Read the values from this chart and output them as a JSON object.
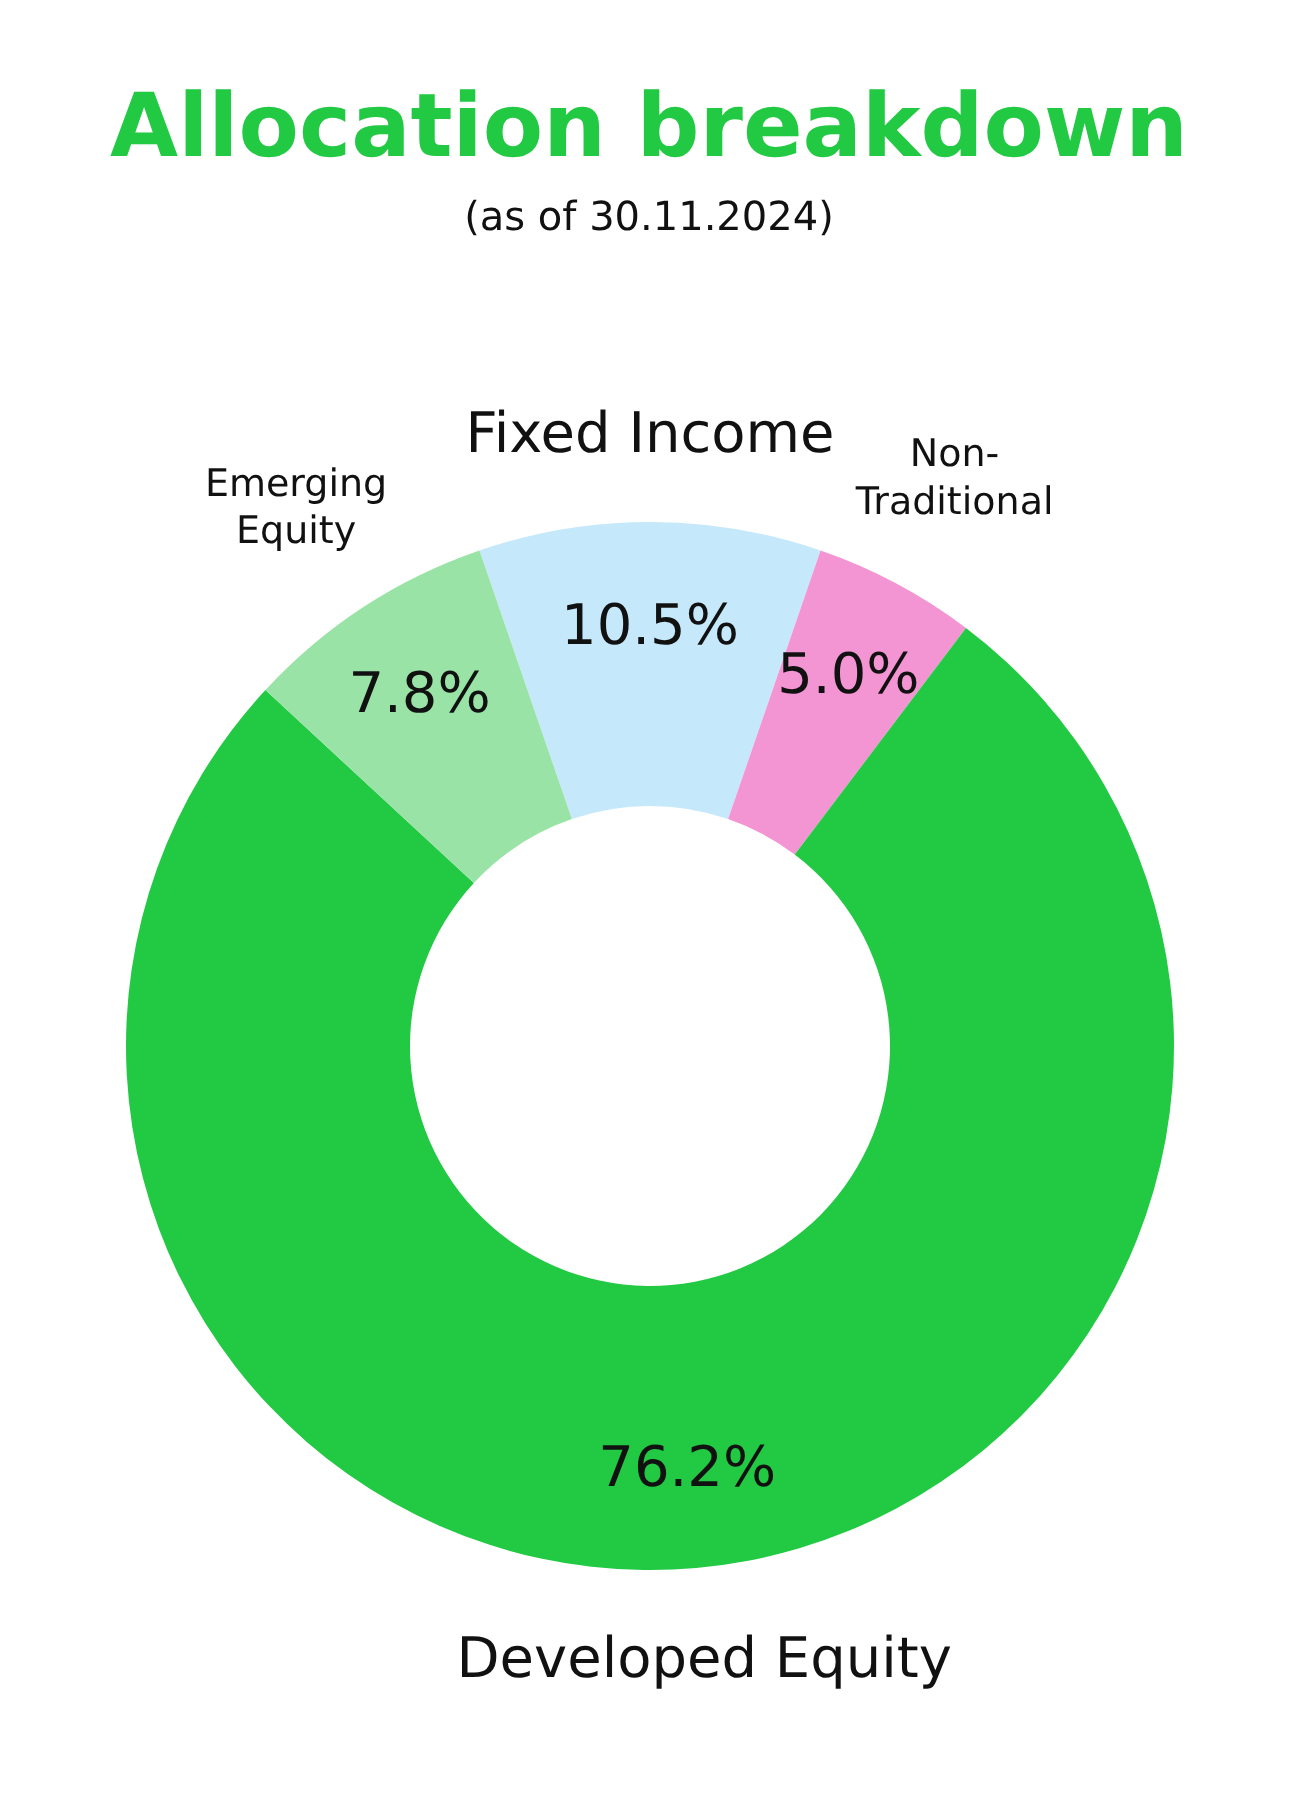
{
  "chart_data": {
    "type": "donut",
    "title": "Allocation breakdown",
    "subtitle": "(as of 30.11.2024)",
    "categories": [
      "Fixed Income",
      "Non-Traditional",
      "Developed Equity",
      "Emerging Equity"
    ],
    "values": [
      10.5,
      5.0,
      76.2,
      7.8
    ],
    "colors": [
      "#c5e8fb",
      "#f495d3",
      "#22c943",
      "#9ae3a6"
    ],
    "value_labels": [
      "10.5%",
      "5.0%",
      "76.2%",
      "7.8%"
    ],
    "legend": false
  }
}
